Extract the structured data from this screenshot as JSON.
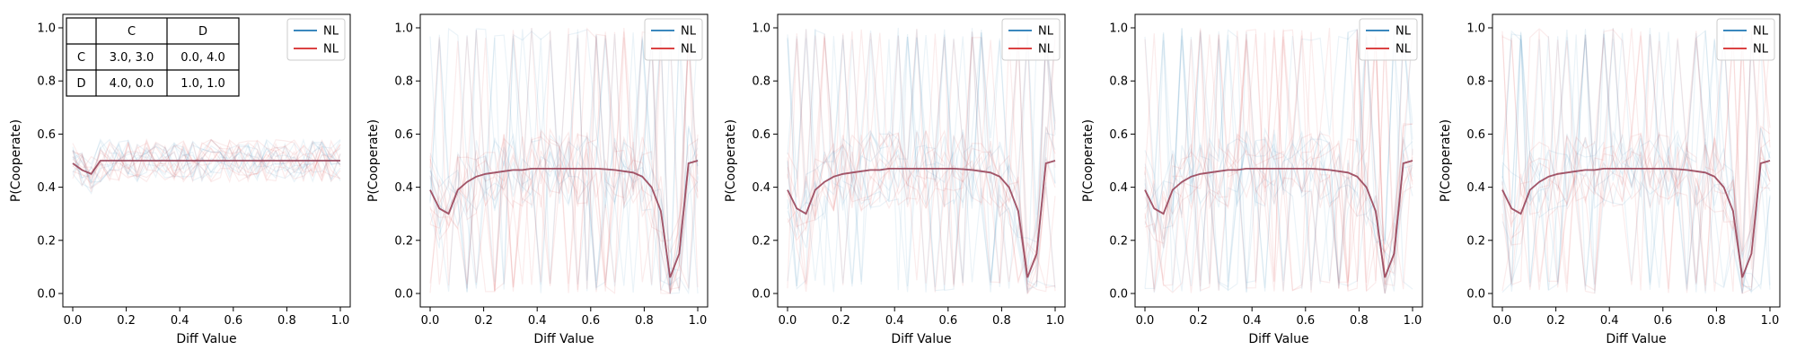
{
  "chart_data": [
    {
      "type": "line",
      "xlabel": "Diff Value",
      "ylabel": "P(Cooperate)",
      "xlim": [
        0,
        1
      ],
      "ylim": [
        0,
        1
      ],
      "x_ticks": [
        "0.0",
        "0.2",
        "0.4",
        "0.6",
        "0.8",
        "1.0"
      ],
      "y_ticks": [
        "0.0",
        "0.2",
        "0.4",
        "0.6",
        "0.8",
        "1.0"
      ],
      "legend": {
        "placement": "top-right",
        "entries": [
          {
            "label": "NL",
            "color": "#1f77b4"
          },
          {
            "label": "NL",
            "color": "#d62728"
          }
        ]
      },
      "payoff_table": {
        "col_headers": [
          "",
          "C",
          "D"
        ],
        "rows": [
          [
            "C",
            "3.0, 3.0",
            "0.0, 4.0"
          ],
          [
            "D",
            "4.0, 0.0",
            "1.0, 1.0"
          ]
        ]
      },
      "x": [
        0.0,
        0.0345,
        0.069,
        0.1034,
        0.1379,
        0.1724,
        0.2069,
        0.2414,
        0.2759,
        0.3103,
        0.3448,
        0.3793,
        0.4138,
        0.4483,
        0.4828,
        0.5172,
        0.5517,
        0.5862,
        0.6207,
        0.6552,
        0.6897,
        0.7241,
        0.7586,
        0.7931,
        0.8276,
        0.8621,
        0.8966,
        0.931,
        0.9655,
        1.0
      ],
      "series": [
        {
          "color": "#1f77b4",
          "values": [
            0.49,
            0.465,
            0.45,
            0.5,
            0.5,
            0.5,
            0.5,
            0.5,
            0.5,
            0.5,
            0.5,
            0.5,
            0.5,
            0.5,
            0.5,
            0.5,
            0.5,
            0.5,
            0.5,
            0.5,
            0.5,
            0.5,
            0.5,
            0.5,
            0.5,
            0.5,
            0.5,
            0.5,
            0.5,
            0.5
          ]
        },
        {
          "color": "#d62728",
          "values": [
            0.49,
            0.465,
            0.45,
            0.5,
            0.5,
            0.5,
            0.5,
            0.5,
            0.5,
            0.5,
            0.5,
            0.5,
            0.5,
            0.5,
            0.5,
            0.5,
            0.5,
            0.5,
            0.5,
            0.5,
            0.5,
            0.5,
            0.5,
            0.5,
            0.5,
            0.5,
            0.5,
            0.5,
            0.5,
            0.5
          ]
        }
      ]
    },
    {
      "type": "line",
      "xlabel": "Diff Value",
      "ylabel": "P(Cooperate)",
      "xlim": [
        0,
        1
      ],
      "ylim": [
        0,
        1
      ],
      "x_ticks": [
        "0.0",
        "0.2",
        "0.4",
        "0.6",
        "0.8",
        "1.0"
      ],
      "y_ticks": [
        "0.0",
        "0.2",
        "0.4",
        "0.6",
        "0.8",
        "1.0"
      ],
      "legend": {
        "placement": "top-right",
        "entries": [
          {
            "label": "NL",
            "color": "#1f77b4"
          },
          {
            "label": "NL",
            "color": "#d62728"
          }
        ]
      },
      "x": [
        0.0,
        0.0345,
        0.069,
        0.1034,
        0.1379,
        0.1724,
        0.2069,
        0.2414,
        0.2759,
        0.3103,
        0.3448,
        0.3793,
        0.4138,
        0.4483,
        0.4828,
        0.5172,
        0.5517,
        0.5862,
        0.6207,
        0.6552,
        0.6897,
        0.7241,
        0.7586,
        0.7931,
        0.8276,
        0.8621,
        0.8966,
        0.931,
        0.9655,
        1.0
      ],
      "series": [
        {
          "color": "#1f77b4",
          "values": [
            0.39,
            0.32,
            0.3,
            0.39,
            0.42,
            0.44,
            0.45,
            0.455,
            0.46,
            0.465,
            0.465,
            0.47,
            0.47,
            0.47,
            0.47,
            0.47,
            0.47,
            0.47,
            0.47,
            0.468,
            0.465,
            0.46,
            0.455,
            0.44,
            0.4,
            0.31,
            0.06,
            0.15,
            0.49,
            0.5
          ]
        },
        {
          "color": "#d62728",
          "values": [
            0.39,
            0.32,
            0.3,
            0.39,
            0.42,
            0.44,
            0.45,
            0.455,
            0.46,
            0.465,
            0.465,
            0.47,
            0.47,
            0.47,
            0.47,
            0.47,
            0.47,
            0.47,
            0.47,
            0.468,
            0.465,
            0.46,
            0.455,
            0.44,
            0.4,
            0.31,
            0.06,
            0.15,
            0.49,
            0.5
          ]
        }
      ]
    },
    {
      "type": "line",
      "xlabel": "Diff Value",
      "ylabel": "P(Cooperate)",
      "xlim": [
        0,
        1
      ],
      "ylim": [
        0,
        1
      ],
      "x_ticks": [
        "0.0",
        "0.2",
        "0.4",
        "0.6",
        "0.8",
        "1.0"
      ],
      "y_ticks": [
        "0.0",
        "0.2",
        "0.4",
        "0.6",
        "0.8",
        "1.0"
      ],
      "legend": {
        "placement": "top-right",
        "entries": [
          {
            "label": "NL",
            "color": "#1f77b4"
          },
          {
            "label": "NL",
            "color": "#d62728"
          }
        ]
      },
      "x": [
        0.0,
        0.0345,
        0.069,
        0.1034,
        0.1379,
        0.1724,
        0.2069,
        0.2414,
        0.2759,
        0.3103,
        0.3448,
        0.3793,
        0.4138,
        0.4483,
        0.4828,
        0.5172,
        0.5517,
        0.5862,
        0.6207,
        0.6552,
        0.6897,
        0.7241,
        0.7586,
        0.7931,
        0.8276,
        0.8621,
        0.8966,
        0.931,
        0.9655,
        1.0
      ],
      "series": [
        {
          "color": "#1f77b4",
          "values": [
            0.39,
            0.32,
            0.3,
            0.39,
            0.42,
            0.44,
            0.45,
            0.455,
            0.46,
            0.465,
            0.465,
            0.47,
            0.47,
            0.47,
            0.47,
            0.47,
            0.47,
            0.47,
            0.47,
            0.468,
            0.465,
            0.46,
            0.455,
            0.44,
            0.4,
            0.31,
            0.06,
            0.15,
            0.49,
            0.5
          ]
        },
        {
          "color": "#d62728",
          "values": [
            0.39,
            0.32,
            0.3,
            0.39,
            0.42,
            0.44,
            0.45,
            0.455,
            0.46,
            0.465,
            0.465,
            0.47,
            0.47,
            0.47,
            0.47,
            0.47,
            0.47,
            0.47,
            0.47,
            0.468,
            0.465,
            0.46,
            0.455,
            0.44,
            0.4,
            0.31,
            0.06,
            0.15,
            0.49,
            0.5
          ]
        }
      ]
    },
    {
      "type": "line",
      "xlabel": "Diff Value",
      "ylabel": "P(Cooperate)",
      "xlim": [
        0,
        1
      ],
      "ylim": [
        0,
        1
      ],
      "x_ticks": [
        "0.0",
        "0.2",
        "0.4",
        "0.6",
        "0.8",
        "1.0"
      ],
      "y_ticks": [
        "0.0",
        "0.2",
        "0.4",
        "0.6",
        "0.8",
        "1.0"
      ],
      "legend": {
        "placement": "top-right",
        "entries": [
          {
            "label": "NL",
            "color": "#1f77b4"
          },
          {
            "label": "NL",
            "color": "#d62728"
          }
        ]
      },
      "x": [
        0.0,
        0.0345,
        0.069,
        0.1034,
        0.1379,
        0.1724,
        0.2069,
        0.2414,
        0.2759,
        0.3103,
        0.3448,
        0.3793,
        0.4138,
        0.4483,
        0.4828,
        0.5172,
        0.5517,
        0.5862,
        0.6207,
        0.6552,
        0.6897,
        0.7241,
        0.7586,
        0.7931,
        0.8276,
        0.8621,
        0.8966,
        0.931,
        0.9655,
        1.0
      ],
      "series": [
        {
          "color": "#1f77b4",
          "values": [
            0.39,
            0.32,
            0.3,
            0.39,
            0.42,
            0.44,
            0.45,
            0.455,
            0.46,
            0.465,
            0.465,
            0.47,
            0.47,
            0.47,
            0.47,
            0.47,
            0.47,
            0.47,
            0.47,
            0.468,
            0.465,
            0.46,
            0.455,
            0.44,
            0.4,
            0.31,
            0.06,
            0.15,
            0.49,
            0.5
          ]
        },
        {
          "color": "#d62728",
          "values": [
            0.39,
            0.32,
            0.3,
            0.39,
            0.42,
            0.44,
            0.45,
            0.455,
            0.46,
            0.465,
            0.465,
            0.47,
            0.47,
            0.47,
            0.47,
            0.47,
            0.47,
            0.47,
            0.47,
            0.468,
            0.465,
            0.46,
            0.455,
            0.44,
            0.4,
            0.31,
            0.06,
            0.15,
            0.49,
            0.5
          ]
        }
      ]
    },
    {
      "type": "line",
      "xlabel": "Diff Value",
      "ylabel": "P(Cooperate)",
      "xlim": [
        0,
        1
      ],
      "ylim": [
        0,
        1
      ],
      "x_ticks": [
        "0.0",
        "0.2",
        "0.4",
        "0.6",
        "0.8",
        "1.0"
      ],
      "y_ticks": [
        "0.0",
        "0.2",
        "0.4",
        "0.6",
        "0.8",
        "1.0"
      ],
      "legend": {
        "placement": "top-right",
        "entries": [
          {
            "label": "NL",
            "color": "#1f77b4"
          },
          {
            "label": "NL",
            "color": "#d62728"
          }
        ]
      },
      "x": [
        0.0,
        0.0345,
        0.069,
        0.1034,
        0.1379,
        0.1724,
        0.2069,
        0.2414,
        0.2759,
        0.3103,
        0.3448,
        0.3793,
        0.4138,
        0.4483,
        0.4828,
        0.5172,
        0.5517,
        0.5862,
        0.6207,
        0.6552,
        0.6897,
        0.7241,
        0.7586,
        0.7931,
        0.8276,
        0.8621,
        0.8966,
        0.931,
        0.9655,
        1.0
      ],
      "series": [
        {
          "color": "#1f77b4",
          "values": [
            0.39,
            0.32,
            0.3,
            0.39,
            0.42,
            0.44,
            0.45,
            0.455,
            0.46,
            0.465,
            0.465,
            0.47,
            0.47,
            0.47,
            0.47,
            0.47,
            0.47,
            0.47,
            0.47,
            0.468,
            0.465,
            0.46,
            0.455,
            0.44,
            0.4,
            0.31,
            0.06,
            0.15,
            0.49,
            0.5
          ]
        },
        {
          "color": "#d62728",
          "values": [
            0.39,
            0.32,
            0.3,
            0.39,
            0.42,
            0.44,
            0.45,
            0.455,
            0.46,
            0.465,
            0.465,
            0.47,
            0.47,
            0.47,
            0.47,
            0.47,
            0.47,
            0.47,
            0.47,
            0.468,
            0.465,
            0.46,
            0.455,
            0.44,
            0.4,
            0.31,
            0.06,
            0.15,
            0.49,
            0.5
          ]
        }
      ]
    }
  ]
}
